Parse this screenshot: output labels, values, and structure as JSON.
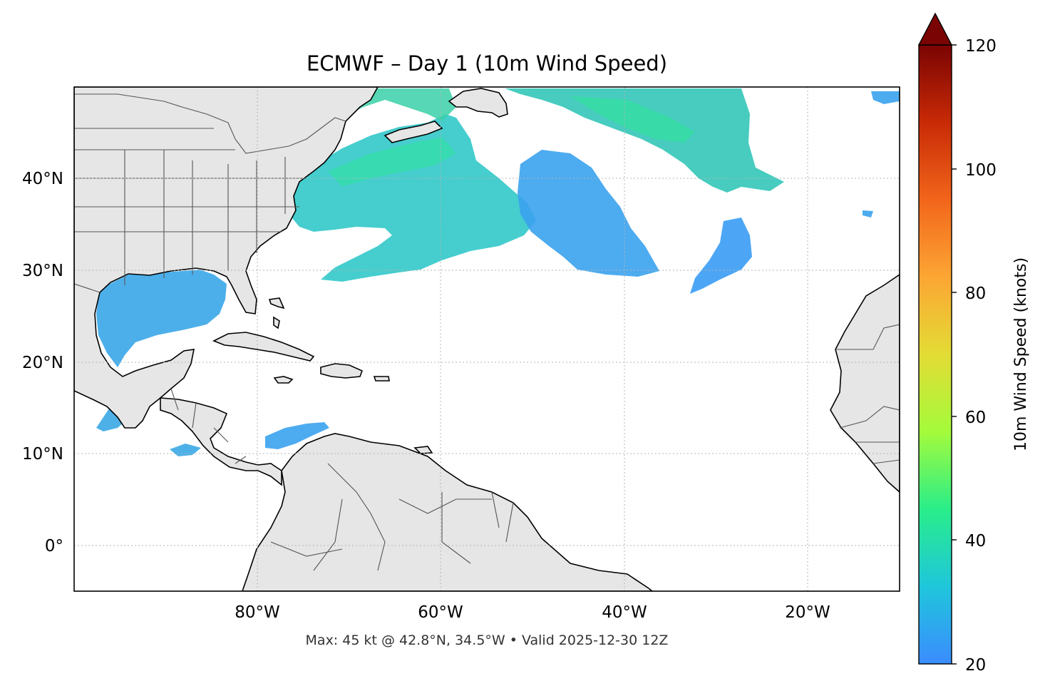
{
  "map": {
    "title": "ECMWF – Day 1 (10m Wind Speed)",
    "footer": "Max: 45 kt @ 42.8°N, 34.5°W • Valid 2025-12-30 12Z",
    "lon_ticks": [
      "80°W",
      "60°W",
      "40°W",
      "20°W"
    ],
    "lat_ticks": [
      "40°N",
      "30°N",
      "20°N",
      "10°N",
      "0°"
    ],
    "extent": {
      "lon_min": -100,
      "lon_max": -10,
      "lat_min": -5,
      "lat_max": 50
    },
    "land_color": "#e6e6e6",
    "coastline_color": "#000000",
    "border_color": "#555555",
    "grid": true
  },
  "colorbar": {
    "label": "10m Wind Speed (knots)",
    "ticks": [
      "20",
      "40",
      "60",
      "80",
      "100",
      "120"
    ],
    "min": 20,
    "max": 120,
    "extend": "max",
    "colors": [
      "#3b8cff",
      "#1fc6db",
      "#29ee8a",
      "#a4fb3b",
      "#e3dc35",
      "#fca634",
      "#f2651b",
      "#c82a06",
      "#7a0403"
    ]
  },
  "wind": {
    "max_speed_kt": 45,
    "max_lat": 42.8,
    "max_lon": -34.5,
    "valid": "2025-12-30 12Z"
  }
}
